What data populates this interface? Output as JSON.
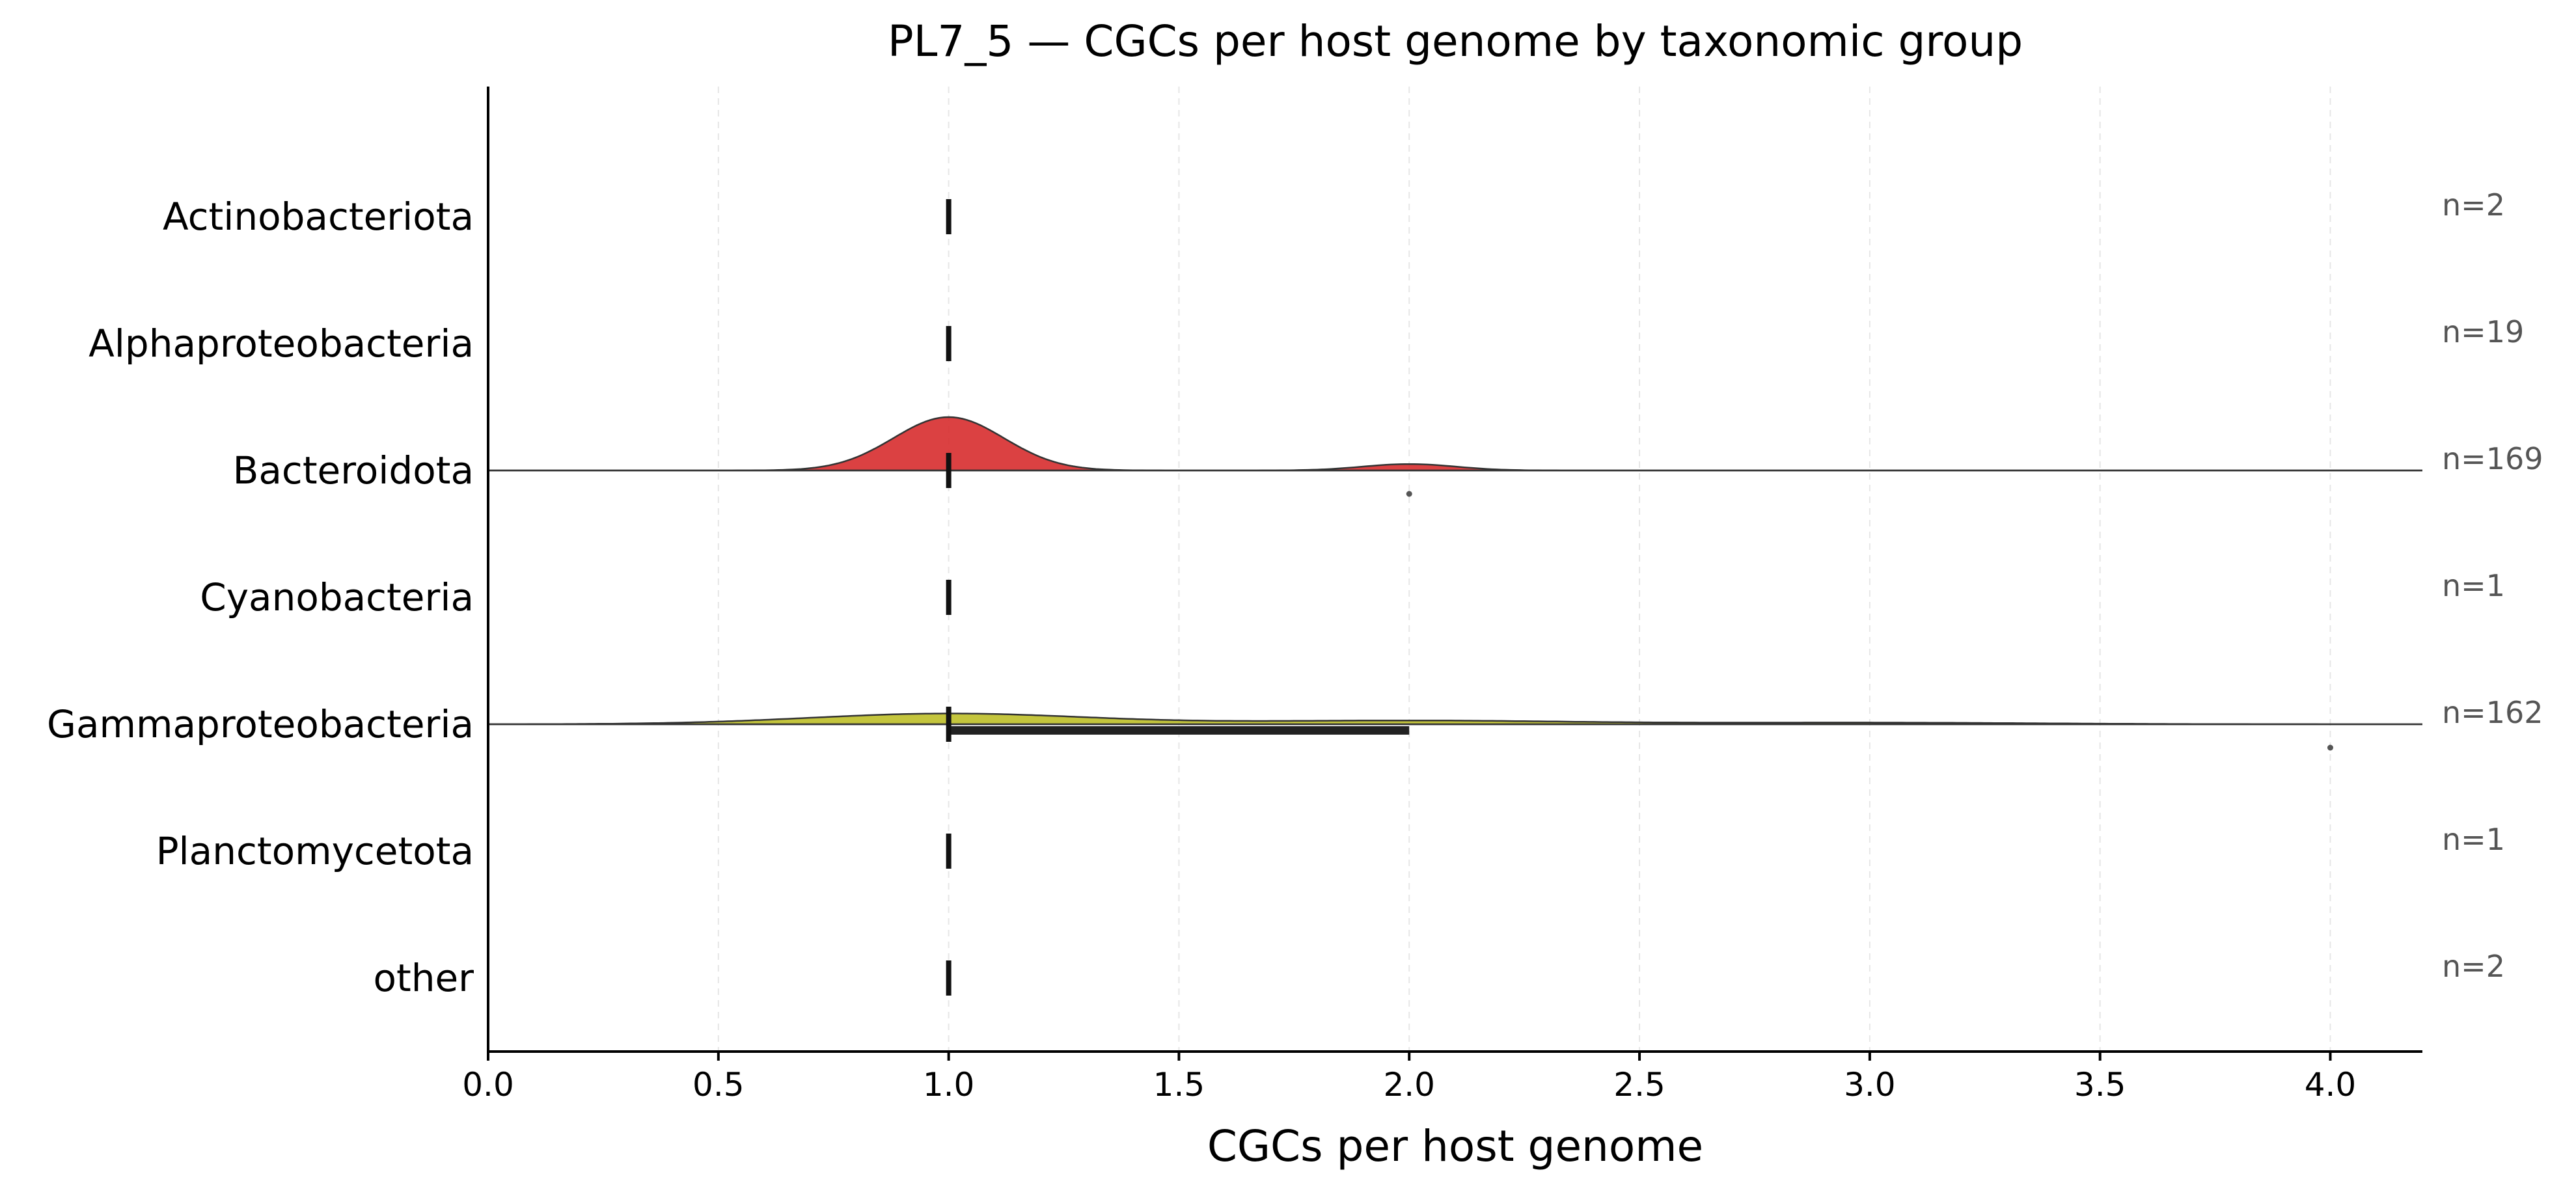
{
  "chart_data": {
    "type": "ridgeline",
    "title": "PL7_5 — CGCs per host genome by taxonomic group",
    "xlabel": "CGCs per host genome",
    "ylabel": "",
    "xlim": [
      0.0,
      4.2
    ],
    "xticks": [
      0.0,
      0.5,
      1.0,
      1.5,
      2.0,
      2.5,
      3.0,
      3.5,
      4.0
    ],
    "xtick_labels": [
      "0.0",
      "0.5",
      "1.0",
      "1.5",
      "2.0",
      "2.5",
      "3.0",
      "3.5",
      "4.0"
    ],
    "grid": "x-dashed",
    "groups": [
      {
        "name": "Actinobacteriota",
        "n_label": "n=2",
        "median": 1.0,
        "q1": 1.0,
        "q3": 1.0,
        "density": false,
        "outliers": []
      },
      {
        "name": "Alphaproteobacteria",
        "n_label": "n=19",
        "median": 1.0,
        "q1": 1.0,
        "q3": 1.0,
        "density": false,
        "outliers": []
      },
      {
        "name": "Bacteroidota",
        "n_label": "n=169",
        "median": 1.0,
        "q1": 1.0,
        "q3": 1.0,
        "density": true,
        "color": "#d62728",
        "peaks": [
          {
            "mu": 1.0,
            "sigma": 0.12,
            "height": 1.0
          },
          {
            "mu": 2.0,
            "sigma": 0.1,
            "height": 0.12
          }
        ],
        "outliers": [
          2.0
        ]
      },
      {
        "name": "Cyanobacteria",
        "n_label": "n=1",
        "median": 1.0,
        "q1": 1.0,
        "q3": 1.0,
        "density": false,
        "outliers": []
      },
      {
        "name": "Gammaproteobacteria",
        "n_label": "n=162",
        "median": 1.0,
        "q1": 1.0,
        "q3": 2.0,
        "density": true,
        "color": "#bcbd22",
        "peaks": [
          {
            "mu": 1.0,
            "sigma": 0.3,
            "height": 0.2
          },
          {
            "mu": 2.0,
            "sigma": 0.35,
            "height": 0.07
          },
          {
            "mu": 3.0,
            "sigma": 0.35,
            "height": 0.03
          }
        ],
        "outliers": [
          4.0
        ]
      },
      {
        "name": "Planctomycetota",
        "n_label": "n=1",
        "median": 1.0,
        "q1": 1.0,
        "q3": 1.0,
        "density": false,
        "outliers": []
      },
      {
        "name": "other",
        "n_label": "n=2",
        "median": 1.0,
        "q1": 1.0,
        "q3": 1.0,
        "density": false,
        "outliers": []
      }
    ]
  }
}
